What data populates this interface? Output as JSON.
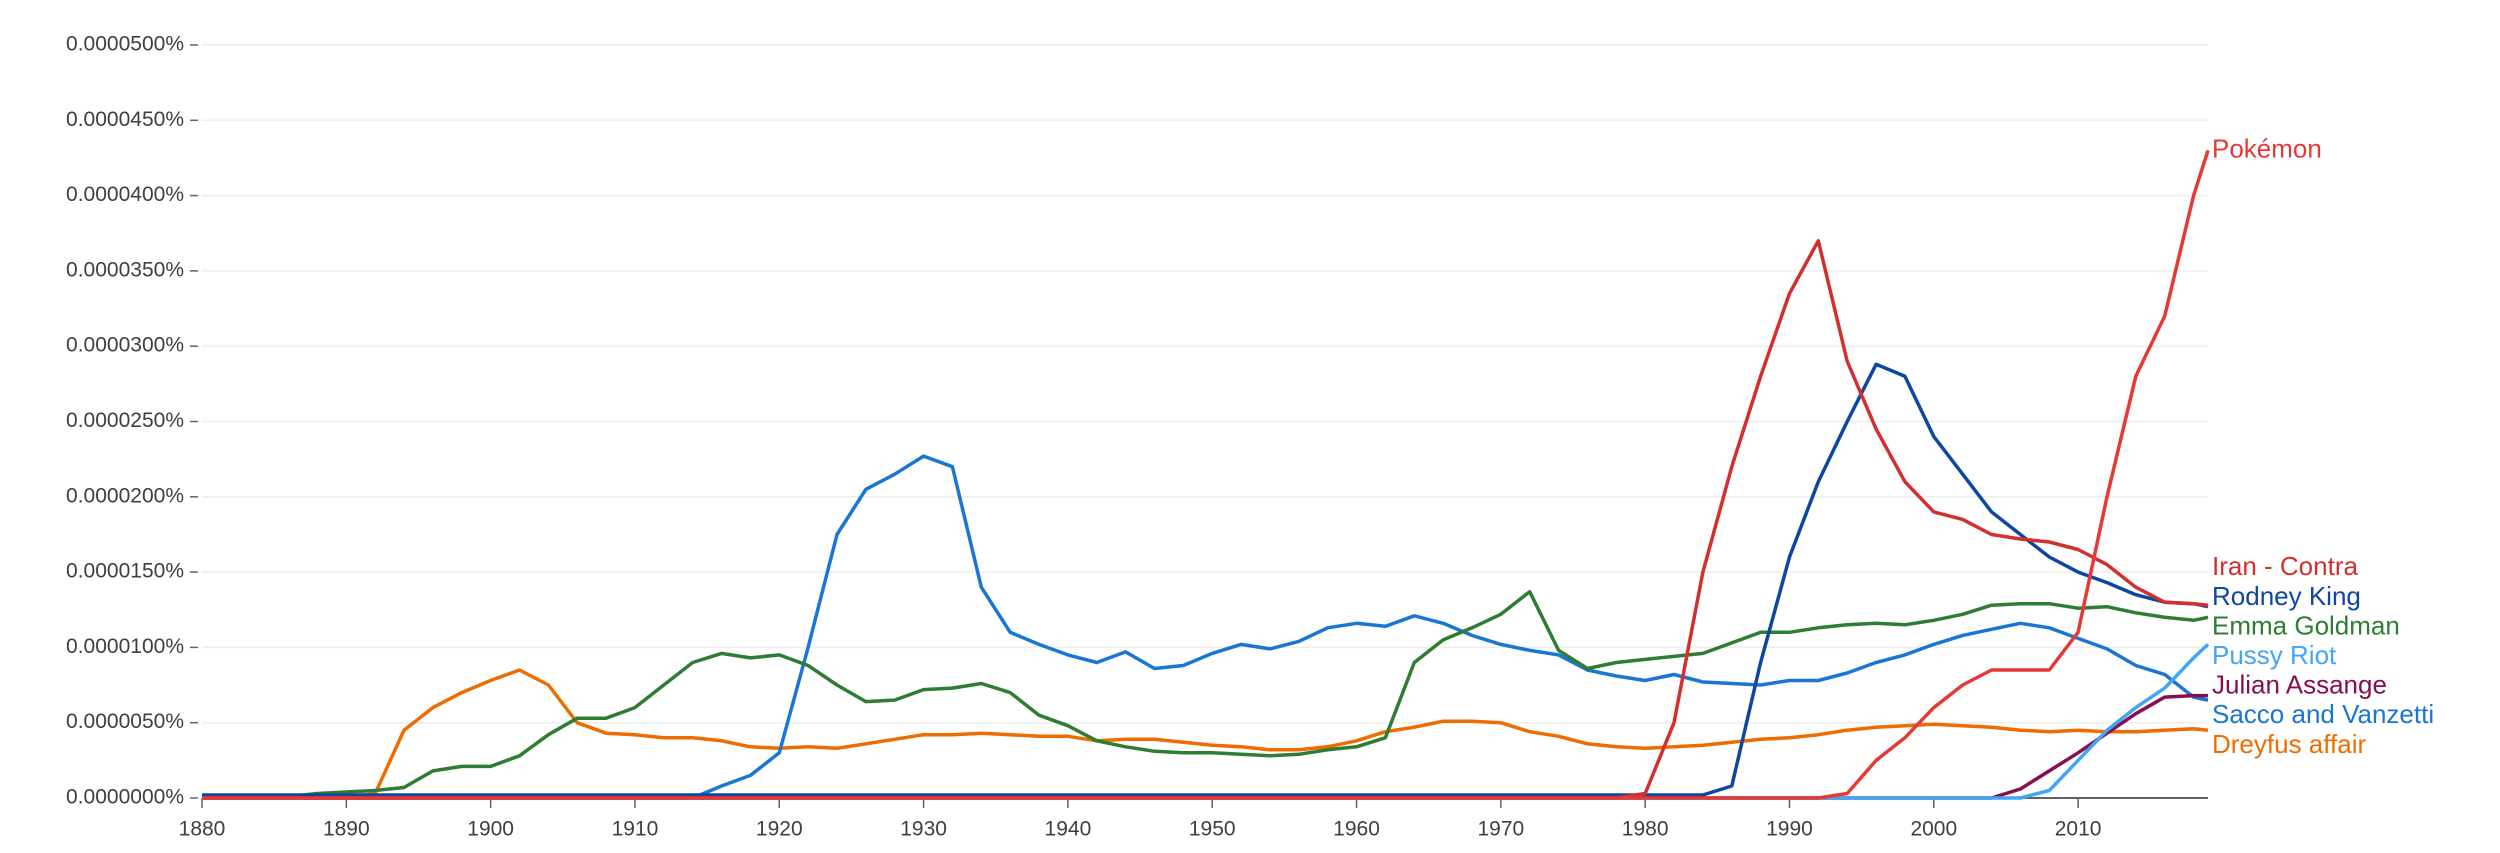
{
  "chart_data": {
    "type": "line",
    "grid": true,
    "xlim": [
      1880,
      2019
    ],
    "ylim": [
      0,
      5e-05
    ],
    "xticks": [
      1880,
      1890,
      1900,
      1910,
      1920,
      1930,
      1940,
      1950,
      1960,
      1970,
      1980,
      1990,
      2000,
      2010
    ],
    "yticks": [
      {
        "value": 0,
        "label": "0.0000000%"
      },
      {
        "value": 5e-06,
        "label": "0.0000050%"
      },
      {
        "value": 1e-05,
        "label": "0.0000100%"
      },
      {
        "value": 1.5e-05,
        "label": "0.0000150%"
      },
      {
        "value": 2e-05,
        "label": "0.0000200%"
      },
      {
        "value": 2.5e-05,
        "label": "0.0000250%"
      },
      {
        "value": 3e-05,
        "label": "0.0000300%"
      },
      {
        "value": 3.5e-05,
        "label": "0.0000350%"
      },
      {
        "value": 4e-05,
        "label": "0.0000400%"
      },
      {
        "value": 4.5e-05,
        "label": "0.0000450%"
      },
      {
        "value": 5e-05,
        "label": "0.0000500%"
      }
    ],
    "x": [
      1880,
      1882,
      1884,
      1886,
      1888,
      1890,
      1892,
      1894,
      1896,
      1898,
      1900,
      1902,
      1904,
      1906,
      1908,
      1910,
      1912,
      1914,
      1916,
      1918,
      1920,
      1922,
      1924,
      1926,
      1928,
      1930,
      1932,
      1934,
      1936,
      1938,
      1940,
      1942,
      1944,
      1946,
      1948,
      1950,
      1952,
      1954,
      1956,
      1958,
      1960,
      1962,
      1964,
      1966,
      1968,
      1970,
      1972,
      1974,
      1976,
      1978,
      1980,
      1982,
      1984,
      1986,
      1988,
      1990,
      1992,
      1994,
      1996,
      1998,
      2000,
      2002,
      2004,
      2006,
      2008,
      2010,
      2012,
      2014,
      2016,
      2018,
      2019
    ],
    "series": [
      {
        "name": "Pokémon",
        "color": "#e53935",
        "values": [
          0,
          0,
          0,
          0,
          0,
          0,
          0,
          0,
          0,
          0,
          0,
          0,
          0,
          0,
          0,
          0,
          0,
          0,
          0,
          0,
          0,
          0,
          0,
          0,
          0,
          0,
          0,
          0,
          0,
          0,
          0,
          0,
          0,
          0,
          0,
          0,
          0,
          0,
          0,
          0,
          0,
          0,
          0,
          0,
          0,
          0,
          0,
          0,
          0,
          0,
          0,
          0,
          0,
          0,
          0,
          0,
          0,
          3e-07,
          2.5e-06,
          4e-06,
          6e-06,
          7.5e-06,
          8.5e-06,
          8.5e-06,
          8.5e-06,
          1.1e-05,
          2e-05,
          2.8e-05,
          3.2e-05,
          4e-05,
          4.3e-05
        ]
      },
      {
        "name": "Iran - Contra",
        "color": "#d32f2f",
        "values": [
          0,
          0,
          0,
          0,
          0,
          0,
          0,
          0,
          0,
          0,
          0,
          0,
          0,
          0,
          0,
          0,
          0,
          0,
          0,
          0,
          0,
          0,
          0,
          0,
          0,
          0,
          0,
          0,
          0,
          0,
          0,
          0,
          0,
          0,
          0,
          0,
          0,
          0,
          0,
          0,
          0,
          0,
          0,
          0,
          0,
          0,
          0,
          0,
          0,
          0,
          3e-07,
          5e-06,
          1.5e-05,
          2.2e-05,
          2.8e-05,
          3.35e-05,
          3.7e-05,
          2.9e-05,
          2.45e-05,
          2.1e-05,
          1.9e-05,
          1.85e-05,
          1.75e-05,
          1.72e-05,
          1.7e-05,
          1.65e-05,
          1.55e-05,
          1.4e-05,
          1.3e-05,
          1.29e-05,
          1.28e-05
        ]
      },
      {
        "name": "Rodney King",
        "color": "#0d47a1",
        "values": [
          2e-07,
          2e-07,
          2e-07,
          2e-07,
          2e-07,
          2e-07,
          2e-07,
          2e-07,
          2e-07,
          2e-07,
          2e-07,
          2e-07,
          2e-07,
          2e-07,
          2e-07,
          2e-07,
          2e-07,
          2e-07,
          2e-07,
          2e-07,
          2e-07,
          2e-07,
          2e-07,
          2e-07,
          2e-07,
          2e-07,
          2e-07,
          2e-07,
          2e-07,
          2e-07,
          2e-07,
          2e-07,
          2e-07,
          2e-07,
          2e-07,
          2e-07,
          2e-07,
          2e-07,
          2e-07,
          2e-07,
          2e-07,
          2e-07,
          2e-07,
          2e-07,
          2e-07,
          2e-07,
          2e-07,
          2e-07,
          2e-07,
          2e-07,
          2e-07,
          2e-07,
          2e-07,
          8e-07,
          9e-06,
          1.6e-05,
          2.1e-05,
          2.5e-05,
          2.88e-05,
          2.8e-05,
          2.4e-05,
          2.15e-05,
          1.9e-05,
          1.75e-05,
          1.6e-05,
          1.5e-05,
          1.43e-05,
          1.35e-05,
          1.3e-05,
          1.29e-05,
          1.27e-05
        ]
      },
      {
        "name": "Emma Goldman",
        "color": "#2e7d32",
        "values": [
          1e-07,
          1e-07,
          1e-07,
          1e-07,
          3e-07,
          4e-07,
          5e-07,
          7e-07,
          1.8e-06,
          2.1e-06,
          2.1e-06,
          2.8e-06,
          4.2e-06,
          5.3e-06,
          5.3e-06,
          6e-06,
          7.5e-06,
          9e-06,
          9.6e-06,
          9.3e-06,
          9.5e-06,
          8.8e-06,
          7.5e-06,
          6.4e-06,
          6.5e-06,
          7.2e-06,
          7.3e-06,
          7.6e-06,
          7e-06,
          5.5e-06,
          4.8e-06,
          3.8e-06,
          3.4e-06,
          3.1e-06,
          3e-06,
          3e-06,
          2.9e-06,
          2.8e-06,
          2.9e-06,
          3.2e-06,
          3.4e-06,
          4e-06,
          9e-06,
          1.05e-05,
          1.13e-05,
          1.22e-05,
          1.37e-05,
          9.8e-06,
          8.6e-06,
          9e-06,
          9.2e-06,
          9.4e-06,
          9.6e-06,
          1.03e-05,
          1.1e-05,
          1.1e-05,
          1.13e-05,
          1.15e-05,
          1.16e-05,
          1.15e-05,
          1.18e-05,
          1.22e-05,
          1.28e-05,
          1.29e-05,
          1.29e-05,
          1.26e-05,
          1.27e-05,
          1.23e-05,
          1.2e-05,
          1.18e-05,
          1.2e-05
        ]
      },
      {
        "name": "Pussy Riot",
        "color": "#42a5f5",
        "values": [
          0,
          0,
          0,
          0,
          0,
          0,
          0,
          0,
          0,
          0,
          0,
          0,
          0,
          0,
          0,
          0,
          0,
          0,
          0,
          0,
          0,
          0,
          0,
          0,
          0,
          0,
          0,
          0,
          0,
          0,
          0,
          0,
          0,
          0,
          0,
          0,
          0,
          0,
          0,
          0,
          0,
          0,
          0,
          0,
          0,
          0,
          0,
          0,
          0,
          0,
          0,
          0,
          0,
          0,
          0,
          0,
          0,
          0,
          0,
          0,
          0,
          0,
          0,
          0,
          5e-07,
          2.5e-06,
          4.5e-06,
          6e-06,
          7.3e-06,
          9.3e-06,
          1.02e-05
        ]
      },
      {
        "name": "Julian Assange",
        "color": "#880e4f",
        "values": [
          0,
          0,
          0,
          0,
          0,
          0,
          0,
          0,
          0,
          0,
          0,
          0,
          0,
          0,
          0,
          0,
          0,
          0,
          0,
          0,
          0,
          0,
          0,
          0,
          0,
          0,
          0,
          0,
          0,
          0,
          0,
          0,
          0,
          0,
          0,
          0,
          0,
          0,
          0,
          0,
          0,
          0,
          0,
          0,
          0,
          0,
          0,
          0,
          0,
          0,
          0,
          0,
          0,
          0,
          0,
          0,
          0,
          0,
          0,
          0,
          0,
          0,
          0,
          6e-07,
          1.8e-06,
          3e-06,
          4.3e-06,
          5.6e-06,
          6.7e-06,
          6.8e-06,
          6.8e-06
        ]
      },
      {
        "name": "Sacco and Vanzetti",
        "color": "#1976d2",
        "values": [
          0,
          0,
          0,
          0,
          0,
          0,
          0,
          0,
          0,
          0,
          0,
          0,
          0,
          0,
          0,
          0,
          0,
          0,
          8e-07,
          1.5e-06,
          3e-06,
          1e-05,
          1.75e-05,
          2.05e-05,
          2.15e-05,
          2.27e-05,
          2.2e-05,
          1.4e-05,
          1.1e-05,
          1.02e-05,
          9.5e-06,
          9e-06,
          9.7e-06,
          8.6e-06,
          8.8e-06,
          9.6e-06,
          1.02e-05,
          9.9e-06,
          1.04e-05,
          1.13e-05,
          1.16e-05,
          1.14e-05,
          1.21e-05,
          1.16e-05,
          1.08e-05,
          1.02e-05,
          9.8e-06,
          9.5e-06,
          8.5e-06,
          8.1e-06,
          7.8e-06,
          8.2e-06,
          7.7e-06,
          7.6e-06,
          7.5e-06,
          7.8e-06,
          7.8e-06,
          8.3e-06,
          9e-06,
          9.5e-06,
          1.02e-05,
          1.08e-05,
          1.12e-05,
          1.16e-05,
          1.13e-05,
          1.06e-05,
          9.9e-06,
          8.8e-06,
          8.2e-06,
          6.7e-06,
          6.5e-06
        ]
      },
      {
        "name": "Dreyfus affair",
        "color": "#ef6c00",
        "values": [
          0,
          0,
          0,
          0,
          0,
          0,
          3e-07,
          4.5e-06,
          6e-06,
          7e-06,
          7.8e-06,
          8.5e-06,
          7.5e-06,
          5e-06,
          4.3e-06,
          4.2e-06,
          4e-06,
          4e-06,
          3.8e-06,
          3.4e-06,
          3.3e-06,
          3.4e-06,
          3.3e-06,
          3.6e-06,
          3.9e-06,
          4.2e-06,
          4.2e-06,
          4.3e-06,
          4.2e-06,
          4.1e-06,
          4.1e-06,
          3.8e-06,
          3.9e-06,
          3.9e-06,
          3.7e-06,
          3.5e-06,
          3.4e-06,
          3.2e-06,
          3.2e-06,
          3.4e-06,
          3.8e-06,
          4.4e-06,
          4.7e-06,
          5.1e-06,
          5.1e-06,
          5e-06,
          4.4e-06,
          4.1e-06,
          3.6e-06,
          3.4e-06,
          3.3e-06,
          3.4e-06,
          3.5e-06,
          3.7e-06,
          3.9e-06,
          4e-06,
          4.2e-06,
          4.5e-06,
          4.7e-06,
          4.8e-06,
          4.9e-06,
          4.8e-06,
          4.7e-06,
          4.5e-06,
          4.4e-06,
          4.5e-06,
          4.4e-06,
          4.4e-06,
          4.5e-06,
          4.6e-06,
          4.5e-06
        ]
      }
    ]
  }
}
